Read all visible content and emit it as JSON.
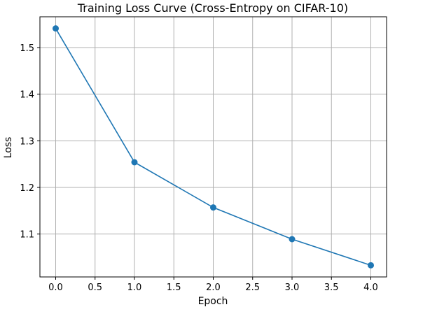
{
  "chart_data": {
    "type": "line",
    "title": "Training Loss Curve (Cross-Entropy on CIFAR-10)",
    "xlabel": "Epoch",
    "ylabel": "Loss",
    "x": [
      0,
      1,
      2,
      3,
      4
    ],
    "series": [
      {
        "name": "Loss",
        "values": [
          1.541,
          1.254,
          1.157,
          1.089,
          1.033
        ]
      }
    ],
    "xlim": [
      -0.2,
      4.2
    ],
    "ylim": [
      1.008,
      1.566
    ],
    "xticks": [
      0,
      0.5,
      1,
      1.5,
      2,
      2.5,
      3,
      3.5,
      4
    ],
    "xtick_labels": [
      "0.0",
      "0.5",
      "1.0",
      "1.5",
      "2.0",
      "2.5",
      "3.0",
      "3.5",
      "4.0"
    ],
    "yticks": [
      1.1,
      1.2,
      1.3,
      1.4,
      1.5
    ],
    "ytick_labels": [
      "1.1",
      "1.2",
      "1.3",
      "1.4",
      "1.5"
    ],
    "grid": true,
    "line_color": "#1f77b4",
    "grid_color": "#b0b0b0"
  }
}
